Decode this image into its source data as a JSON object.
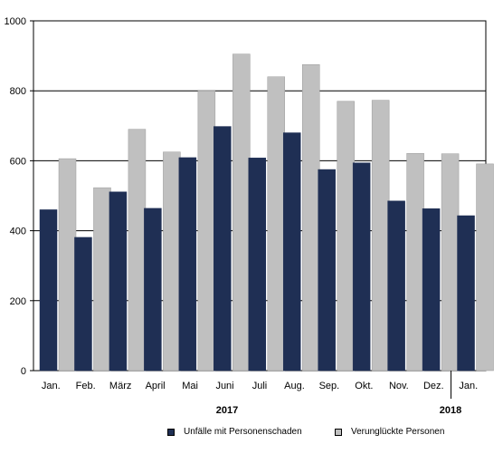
{
  "chart_data": {
    "type": "bar",
    "categories": [
      "Jan.",
      "Feb.",
      "März",
      "April",
      "Mai",
      "Juni",
      "Juli",
      "Aug.",
      "Sep.",
      "Okt.",
      "Nov.",
      "Dez.",
      "Jan."
    ],
    "series": [
      {
        "name": "Unfälle mit Personenschaden",
        "color": "#1f2f54",
        "values": [
          460,
          381,
          511,
          464,
          609,
          698,
          608,
          680,
          575,
          594,
          485,
          463,
          443
        ]
      },
      {
        "name": "Verunglückte Personen",
        "color": "#c0c0c0",
        "values": [
          606,
          523,
          690,
          625,
          800,
          905,
          840,
          875,
          770,
          773,
          621,
          620,
          591
        ]
      }
    ],
    "ylim": [
      0,
      1000
    ],
    "yticks": [
      0,
      200,
      400,
      600,
      800,
      1000
    ],
    "grid": true,
    "legend_position": "bottom",
    "year_labels": [
      "2017",
      "2018"
    ],
    "title": "",
    "xlabel": "",
    "ylabel": ""
  }
}
